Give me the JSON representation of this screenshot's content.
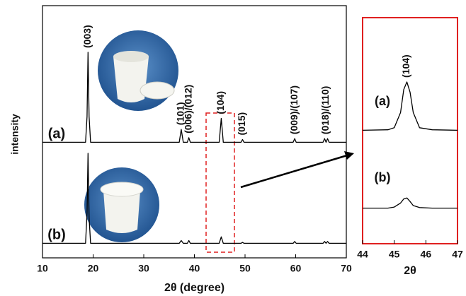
{
  "chart_data": [
    {
      "type": "line",
      "xlabel": "2θ (degree)",
      "ylabel": "intensity",
      "xlim": [
        10,
        70
      ],
      "xticks": [
        10,
        20,
        30,
        40,
        50,
        60,
        70
      ],
      "ylim": [
        0,
        100
      ],
      "x": [
        10,
        18.5,
        18.8,
        19.0,
        19.2,
        19.5,
        37.0,
        37.4,
        37.8,
        38.6,
        38.9,
        39.2,
        44.9,
        45.3,
        45.7,
        49.2,
        49.5,
        49.8,
        59.5,
        59.8,
        60.1,
        65.4,
        65.7,
        66.0,
        66.3,
        66.6,
        70
      ],
      "series": [
        {
          "name": "(a)",
          "color": "#000000",
          "values": [
            2,
            2,
            30,
            100,
            30,
            2,
            2,
            16,
            2,
            2,
            7,
            2,
            2,
            28,
            2,
            2,
            5,
            2,
            2,
            6,
            2,
            2,
            6,
            2,
            6,
            2,
            2
          ]
        },
        {
          "name": "(b)",
          "color": "#000000",
          "values": [
            2,
            2,
            35,
            100,
            30,
            2,
            2,
            5,
            2,
            2,
            5,
            2,
            2,
            9,
            2,
            2,
            3,
            2,
            2,
            4,
            2,
            2,
            4,
            2,
            4,
            2,
            2
          ]
        }
      ],
      "annotations": [
        {
          "text": "(003)",
          "x": 19.0
        },
        {
          "text": "(101)",
          "x": 37.4
        },
        {
          "text": "(006)/(012)",
          "x": 38.9
        },
        {
          "text": "(104)",
          "x": 45.3
        },
        {
          "text": "(015)",
          "x": 49.5
        },
        {
          "text": "(009)/(107)",
          "x": 59.8
        },
        {
          "text": "(018)/(110)",
          "x": 66.0
        }
      ]
    },
    {
      "type": "line",
      "xlabel": "2θ",
      "xlim": [
        44,
        47
      ],
      "xticks": [
        44,
        45,
        46,
        47
      ],
      "ylim": [
        0,
        100
      ],
      "x": [
        44,
        44.8,
        45.0,
        45.2,
        45.3,
        45.4,
        45.5,
        45.6,
        45.8,
        46.2,
        47
      ],
      "series": [
        {
          "name": "(a)",
          "color": "#000000",
          "values": [
            5,
            6,
            10,
            40,
            85,
            100,
            80,
            40,
            10,
            6,
            5
          ]
        },
        {
          "name": "(b)",
          "color": "#000000",
          "values": [
            2,
            2,
            4,
            12,
            20,
            22,
            15,
            7,
            3,
            2,
            2
          ]
        }
      ],
      "annotations": [
        {
          "text": "(104)",
          "x": 45.4
        }
      ]
    }
  ]
}
